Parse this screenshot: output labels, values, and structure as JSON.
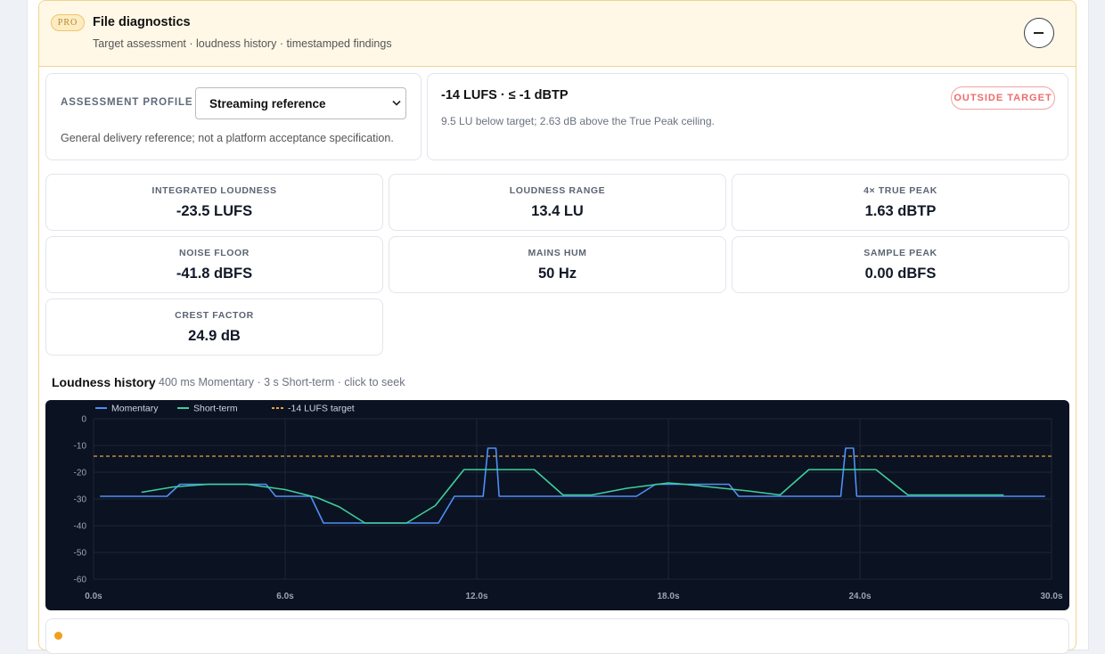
{
  "header": {
    "badge": "PRO",
    "title": "File diagnostics",
    "subtitle": "Target assessment · loudness history · timestamped findings"
  },
  "profile": {
    "label": "ASSESSMENT PROFILE",
    "selected": "Streaming reference",
    "note": "General delivery reference; not a platform acceptance specification."
  },
  "assessment": {
    "headline": "-14 LUFS · ≤ -1 dBTP",
    "detail": "9.5 LU below target; 2.63 dB above the True Peak ceiling.",
    "status": "OUTSIDE TARGET"
  },
  "metrics": [
    {
      "label": "INTEGRATED LOUDNESS",
      "value": "-23.5 LUFS"
    },
    {
      "label": "LOUDNESS RANGE",
      "value": "13.4 LU"
    },
    {
      "label": "4× TRUE PEAK",
      "value": "1.63 dBTP"
    },
    {
      "label": "NOISE FLOOR",
      "value": "-41.8 dBFS"
    },
    {
      "label": "MAINS HUM",
      "value": "50 Hz"
    },
    {
      "label": "SAMPLE PEAK",
      "value": "0.00 dBFS"
    },
    {
      "label": "CREST FACTOR",
      "value": "24.9 dB"
    }
  ],
  "history": {
    "title": "Loudness history",
    "subtitle": "400 ms Momentary · 3 s Short-term · click to seek"
  },
  "chart_data": {
    "type": "line",
    "xlim": [
      0,
      30
    ],
    "xticks": [
      {
        "value": 0,
        "label": "0.0s"
      },
      {
        "value": 6,
        "label": "6.0s"
      },
      {
        "value": 12,
        "label": "12.0s"
      },
      {
        "value": 18,
        "label": "18.0s"
      },
      {
        "value": 24,
        "label": "24.0s"
      },
      {
        "value": 30,
        "label": "30.0s"
      }
    ],
    "ylim": [
      -60,
      0
    ],
    "yticks": [
      0,
      -10,
      -20,
      -30,
      -40,
      -50,
      -60
    ],
    "grid": true,
    "series": [
      {
        "name": "Momentary",
        "color": "#4f8ff7",
        "x": [
          0.2,
          2.3,
          2.7,
          5.4,
          5.7,
          6.8,
          7.2,
          10.8,
          11.3,
          12.2,
          12.35,
          12.6,
          12.7,
          17.0,
          17.6,
          19.9,
          20.2,
          23.4,
          23.55,
          23.8,
          23.9,
          29.8
        ],
        "values": [
          -29,
          -29,
          -24.5,
          -24.5,
          -29,
          -29,
          -39,
          -39,
          -29,
          -29,
          -11,
          -11,
          -29,
          -29,
          -24.5,
          -24.5,
          -29,
          -29,
          -11,
          -11,
          -29,
          -29
        ]
      },
      {
        "name": "Short-term",
        "color": "#3ecf9a",
        "x": [
          1.5,
          2.5,
          3.6,
          4.8,
          6.0,
          7.0,
          7.7,
          8.5,
          9.8,
          10.7,
          11.6,
          13.8,
          14.7,
          15.6,
          16.7,
          18.0,
          18.5,
          20.5,
          21.5,
          22.4,
          24.5,
          25.5,
          28.5
        ],
        "values": [
          -27.5,
          -25.5,
          -24.5,
          -24.5,
          -26.5,
          -29.5,
          -33,
          -39,
          -39,
          -32.5,
          -19,
          -19,
          -28.5,
          -28.5,
          -26,
          -24,
          -24.5,
          -27,
          -28.5,
          -19,
          -19,
          -28.5,
          -28.5
        ]
      }
    ],
    "target": {
      "name": "-14 LUFS target",
      "value": -14,
      "color": "#e0a53a"
    }
  }
}
